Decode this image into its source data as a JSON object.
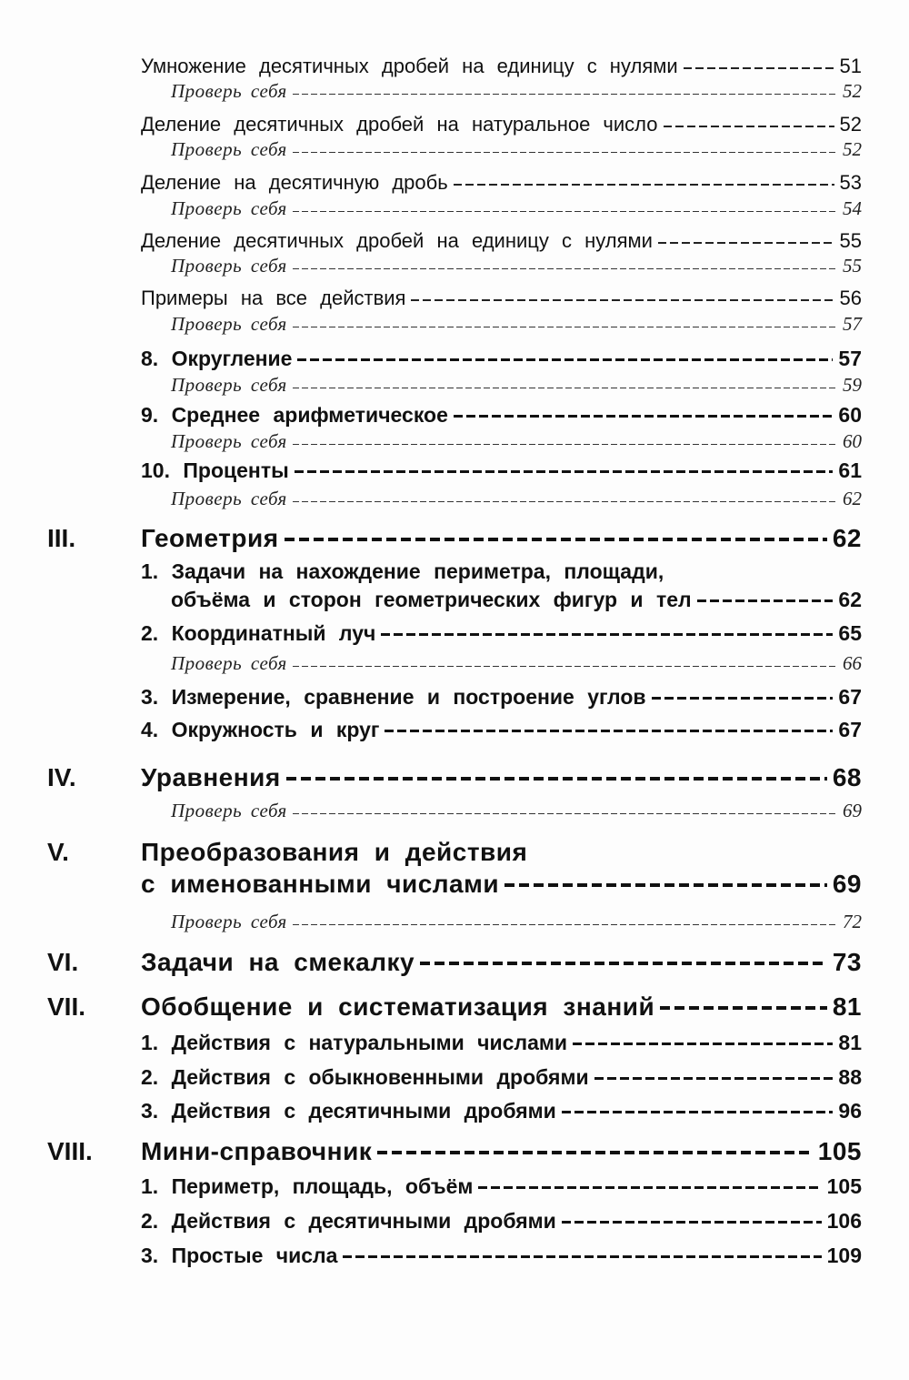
{
  "entries": [
    {
      "type": "reg",
      "label": "Умножение десятичных дробей на единицу с нулями",
      "page": "51"
    },
    {
      "type": "chk",
      "label": "Проверь себя",
      "page": "52"
    },
    {
      "type": "reg",
      "label": "Деление десятичных дробей на натуральное число",
      "page": "52"
    },
    {
      "type": "chk",
      "label": "Проверь себя",
      "page": "52"
    },
    {
      "type": "reg",
      "label": "Деление на десятичную дробь",
      "page": "53"
    },
    {
      "type": "chk",
      "label": "Проверь себя",
      "page": "54"
    },
    {
      "type": "reg",
      "label": "Деление десятичных дробей на единицу с нулями",
      "page": "55"
    },
    {
      "type": "chk",
      "label": "Проверь себя",
      "page": "55"
    },
    {
      "type": "reg",
      "label": "Примеры на все действия",
      "page": "56"
    },
    {
      "type": "chk",
      "label": "Проверь себя",
      "page": "57"
    },
    {
      "type": "sub",
      "label": "8. Округление",
      "page": "57"
    },
    {
      "type": "chk",
      "label": "Проверь себя",
      "page": "59"
    },
    {
      "type": "sub",
      "label": "9. Среднее арифметическое",
      "page": "60"
    },
    {
      "type": "chk",
      "label": "Проверь себя",
      "page": "60"
    },
    {
      "type": "sub",
      "label": "10. Проценты",
      "page": "61"
    },
    {
      "type": "chk",
      "label": "Проверь себя",
      "page": "62"
    },
    {
      "type": "sec",
      "roman": "III.",
      "label": "Геометрия",
      "page": "62"
    },
    {
      "type": "sub",
      "label": "1. Задачи на нахождение периметра, площади,",
      "page": ""
    },
    {
      "type": "sub",
      "indent": true,
      "label": "объёма и сторон геометрических фигур и тел",
      "page": "62"
    },
    {
      "type": "sub",
      "label": "2. Координатный луч",
      "page": "65"
    },
    {
      "type": "chk",
      "label": "Проверь себя",
      "page": "66"
    },
    {
      "type": "sub",
      "label": "3. Измерение, сравнение и построение углов",
      "page": "67"
    },
    {
      "type": "sub",
      "label": "4. Окружность и круг",
      "page": "67"
    },
    {
      "type": "sec",
      "roman": "IV.",
      "label": "Уравнения",
      "page": "68"
    },
    {
      "type": "chk",
      "label": "Проверь себя",
      "page": "69"
    },
    {
      "type": "sec",
      "roman": "V.",
      "label": "Преобразования и действия",
      "page": ""
    },
    {
      "type": "sec",
      "label": "с именованными числами",
      "page": "69"
    },
    {
      "type": "chk",
      "label": "Проверь себя",
      "page": "72"
    },
    {
      "type": "sec",
      "roman": "VI.",
      "label": "Задачи на смекалку",
      "page": "73"
    },
    {
      "type": "sec",
      "roman": "VII.",
      "label": "Обобщение и систематизация знаний",
      "page": "81"
    },
    {
      "type": "sub",
      "label": "1. Действия с натуральными числами",
      "page": "81"
    },
    {
      "type": "sub",
      "label": "2. Действия с обыкновенными дробями",
      "page": "88"
    },
    {
      "type": "sub",
      "label": "3. Действия с десятичными дробями",
      "page": "96"
    },
    {
      "type": "sec",
      "roman": "VIII.",
      "label": "Мини-справочник",
      "page": "105"
    },
    {
      "type": "sub",
      "label": "1. Периметр, площадь, объём",
      "page": "105"
    },
    {
      "type": "sub",
      "label": "2. Действия с десятичными дробями",
      "page": "106"
    },
    {
      "type": "sub",
      "label": "3. Простые числа",
      "page": "109"
    }
  ]
}
